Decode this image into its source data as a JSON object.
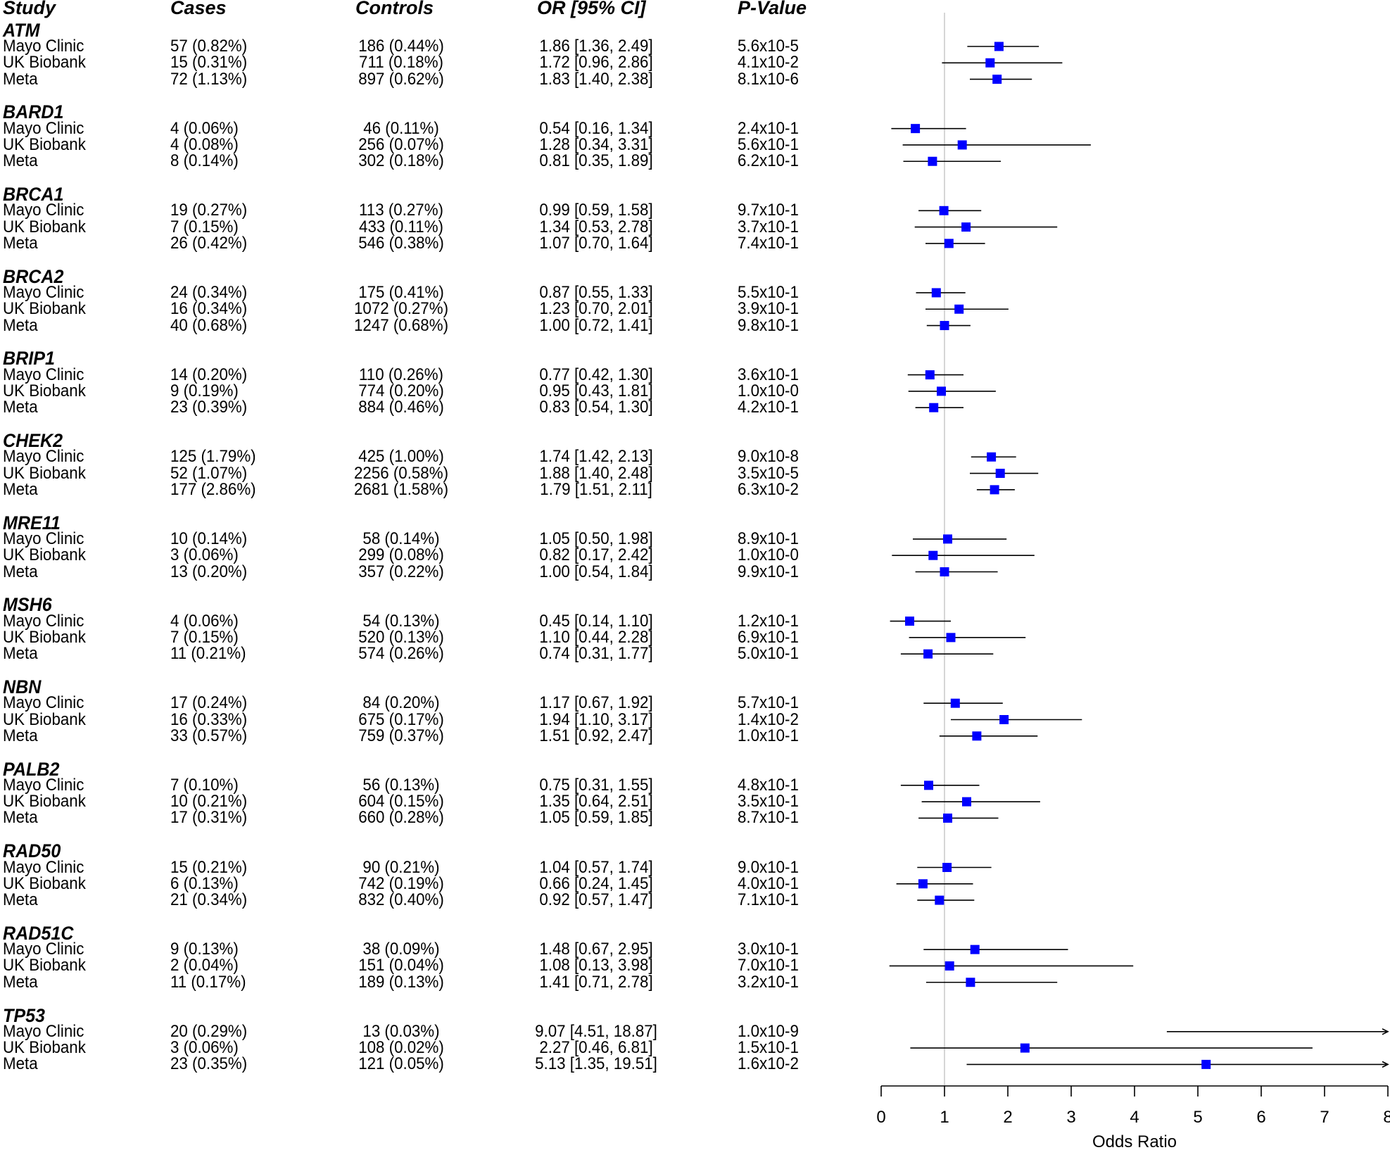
{
  "chart_data": {
    "type": "forest",
    "xlabel": "Odds Ratio",
    "xlim": [
      0,
      8
    ],
    "xticks": [
      0,
      1,
      2,
      3,
      4,
      5,
      6,
      7,
      8
    ],
    "reference_line": 1,
    "marker_color": "#0000ff",
    "columns": [
      "Study",
      "Cases",
      "Controls",
      "OR [95% CI]",
      "P-Value"
    ],
    "groups": [
      {
        "gene": "ATM",
        "rows": [
          {
            "study": "Mayo Clinic",
            "cases": "57 (0.82%)",
            "controls": "186 (0.44%)",
            "or_text": "1.86 [1.36, 2.49]",
            "p": "5.6x10-5",
            "or": 1.86,
            "lo": 1.36,
            "hi": 2.49
          },
          {
            "study": "UK Biobank",
            "cases": "15 (0.31%)",
            "controls": "711 (0.18%)",
            "or_text": "1.72 [0.96, 2.86]",
            "p": "4.1x10-2",
            "or": 1.72,
            "lo": 0.96,
            "hi": 2.86
          },
          {
            "study": "Meta",
            "cases": "72 (1.13%)",
            "controls": "897 (0.62%)",
            "or_text": "1.83 [1.40, 2.38]",
            "p": "8.1x10-6",
            "or": 1.83,
            "lo": 1.4,
            "hi": 2.38
          }
        ]
      },
      {
        "gene": "BARD1",
        "rows": [
          {
            "study": "Mayo Clinic",
            "cases": "4 (0.06%)",
            "controls": "46 (0.11%)",
            "or_text": "0.54 [0.16, 1.34]",
            "p": "2.4x10-1",
            "or": 0.54,
            "lo": 0.16,
            "hi": 1.34
          },
          {
            "study": "UK Biobank",
            "cases": "4 (0.08%)",
            "controls": "256 (0.07%)",
            "or_text": "1.28 [0.34, 3.31]",
            "p": "5.6x10-1",
            "or": 1.28,
            "lo": 0.34,
            "hi": 3.31
          },
          {
            "study": "Meta",
            "cases": "8 (0.14%)",
            "controls": "302 (0.18%)",
            "or_text": "0.81 [0.35, 1.89]",
            "p": "6.2x10-1",
            "or": 0.81,
            "lo": 0.35,
            "hi": 1.89
          }
        ]
      },
      {
        "gene": "BRCA1",
        "rows": [
          {
            "study": "Mayo Clinic",
            "cases": "19 (0.27%)",
            "controls": "113 (0.27%)",
            "or_text": "0.99 [0.59, 1.58]",
            "p": "9.7x10-1",
            "or": 0.99,
            "lo": 0.59,
            "hi": 1.58
          },
          {
            "study": "UK Biobank",
            "cases": "7 (0.15%)",
            "controls": "433 (0.11%)",
            "or_text": "1.34 [0.53, 2.78]",
            "p": "3.7x10-1",
            "or": 1.34,
            "lo": 0.53,
            "hi": 2.78
          },
          {
            "study": "Meta",
            "cases": "26 (0.42%)",
            "controls": "546 (0.38%)",
            "or_text": "1.07 [0.70, 1.64]",
            "p": "7.4x10-1",
            "or": 1.07,
            "lo": 0.7,
            "hi": 1.64
          }
        ]
      },
      {
        "gene": "BRCA2",
        "rows": [
          {
            "study": "Mayo Clinic",
            "cases": "24 (0.34%)",
            "controls": "175 (0.41%)",
            "or_text": "0.87 [0.55, 1.33]",
            "p": "5.5x10-1",
            "or": 0.87,
            "lo": 0.55,
            "hi": 1.33
          },
          {
            "study": "UK Biobank",
            "cases": "16 (0.34%)",
            "controls": "1072 (0.27%)",
            "or_text": "1.23 [0.70, 2.01]",
            "p": "3.9x10-1",
            "or": 1.23,
            "lo": 0.7,
            "hi": 2.01
          },
          {
            "study": "Meta",
            "cases": "40 (0.68%)",
            "controls": "1247 (0.68%)",
            "or_text": "1.00 [0.72, 1.41]",
            "p": "9.8x10-1",
            "or": 1.0,
            "lo": 0.72,
            "hi": 1.41
          }
        ]
      },
      {
        "gene": "BRIP1",
        "rows": [
          {
            "study": "Mayo Clinic",
            "cases": "14 (0.20%)",
            "controls": "110 (0.26%)",
            "or_text": "0.77 [0.42, 1.30]",
            "p": "3.6x10-1",
            "or": 0.77,
            "lo": 0.42,
            "hi": 1.3
          },
          {
            "study": "UK Biobank",
            "cases": "9 (0.19%)",
            "controls": "774 (0.20%)",
            "or_text": "0.95 [0.43, 1.81]",
            "p": "1.0x10-0",
            "or": 0.95,
            "lo": 0.43,
            "hi": 1.81
          },
          {
            "study": "Meta",
            "cases": "23 (0.39%)",
            "controls": "884 (0.46%)",
            "or_text": "0.83 [0.54, 1.30]",
            "p": "4.2x10-1",
            "or": 0.83,
            "lo": 0.54,
            "hi": 1.3
          }
        ]
      },
      {
        "gene": "CHEK2",
        "rows": [
          {
            "study": "Mayo Clinic",
            "cases": "125 (1.79%)",
            "controls": "425 (1.00%)",
            "or_text": "1.74 [1.42, 2.13]",
            "p": "9.0x10-8",
            "or": 1.74,
            "lo": 1.42,
            "hi": 2.13
          },
          {
            "study": "UK Biobank",
            "cases": "52 (1.07%)",
            "controls": "2256 (0.58%)",
            "or_text": "1.88 [1.40, 2.48]",
            "p": "3.5x10-5",
            "or": 1.88,
            "lo": 1.4,
            "hi": 2.48
          },
          {
            "study": "Meta",
            "cases": "177 (2.86%)",
            "controls": "2681 (1.58%)",
            "or_text": "1.79 [1.51, 2.11]",
            "p": "6.3x10-2",
            "or": 1.79,
            "lo": 1.51,
            "hi": 2.11
          }
        ]
      },
      {
        "gene": "MRE11",
        "rows": [
          {
            "study": "Mayo Clinic",
            "cases": "10 (0.14%)",
            "controls": "58 (0.14%)",
            "or_text": "1.05 [0.50, 1.98]",
            "p": "8.9x10-1",
            "or": 1.05,
            "lo": 0.5,
            "hi": 1.98
          },
          {
            "study": "UK Biobank",
            "cases": "3 (0.06%)",
            "controls": "299 (0.08%)",
            "or_text": "0.82 [0.17, 2.42]",
            "p": "1.0x10-0",
            "or": 0.82,
            "lo": 0.17,
            "hi": 2.42
          },
          {
            "study": "Meta",
            "cases": "13 (0.20%)",
            "controls": "357 (0.22%)",
            "or_text": "1.00 [0.54, 1.84]",
            "p": "9.9x10-1",
            "or": 1.0,
            "lo": 0.54,
            "hi": 1.84
          }
        ]
      },
      {
        "gene": "MSH6",
        "rows": [
          {
            "study": "Mayo Clinic",
            "cases": "4 (0.06%)",
            "controls": "54 (0.13%)",
            "or_text": "0.45 [0.14, 1.10]",
            "p": "1.2x10-1",
            "or": 0.45,
            "lo": 0.14,
            "hi": 1.1
          },
          {
            "study": "UK Biobank",
            "cases": "7 (0.15%)",
            "controls": "520 (0.13%)",
            "or_text": "1.10 [0.44, 2.28]",
            "p": "6.9x10-1",
            "or": 1.1,
            "lo": 0.44,
            "hi": 2.28
          },
          {
            "study": "Meta",
            "cases": "11 (0.21%)",
            "controls": "574 (0.26%)",
            "or_text": "0.74 [0.31, 1.77]",
            "p": "5.0x10-1",
            "or": 0.74,
            "lo": 0.31,
            "hi": 1.77
          }
        ]
      },
      {
        "gene": "NBN",
        "rows": [
          {
            "study": "Mayo Clinic",
            "cases": "17 (0.24%)",
            "controls": "84 (0.20%)",
            "or_text": "1.17 [0.67, 1.92]",
            "p": "5.7x10-1",
            "or": 1.17,
            "lo": 0.67,
            "hi": 1.92
          },
          {
            "study": "UK Biobank",
            "cases": "16 (0.33%)",
            "controls": "675 (0.17%)",
            "or_text": "1.94 [1.10, 3.17]",
            "p": "1.4x10-2",
            "or": 1.94,
            "lo": 1.1,
            "hi": 3.17
          },
          {
            "study": "Meta",
            "cases": "33 (0.57%)",
            "controls": "759 (0.37%)",
            "or_text": "1.51 [0.92, 2.47]",
            "p": "1.0x10-1",
            "or": 1.51,
            "lo": 0.92,
            "hi": 2.47
          }
        ]
      },
      {
        "gene": "PALB2",
        "rows": [
          {
            "study": "Mayo Clinic",
            "cases": "7 (0.10%)",
            "controls": "56 (0.13%)",
            "or_text": "0.75 [0.31, 1.55]",
            "p": "4.8x10-1",
            "or": 0.75,
            "lo": 0.31,
            "hi": 1.55
          },
          {
            "study": "UK Biobank",
            "cases": "10 (0.21%)",
            "controls": "604 (0.15%)",
            "or_text": "1.35 [0.64, 2.51]",
            "p": "3.5x10-1",
            "or": 1.35,
            "lo": 0.64,
            "hi": 2.51
          },
          {
            "study": "Meta",
            "cases": "17 (0.31%)",
            "controls": "660 (0.28%)",
            "or_text": "1.05 [0.59, 1.85]",
            "p": "8.7x10-1",
            "or": 1.05,
            "lo": 0.59,
            "hi": 1.85
          }
        ]
      },
      {
        "gene": "RAD50",
        "rows": [
          {
            "study": "Mayo Clinic",
            "cases": "15 (0.21%)",
            "controls": "90 (0.21%)",
            "or_text": "1.04 [0.57, 1.74]",
            "p": "9.0x10-1",
            "or": 1.04,
            "lo": 0.57,
            "hi": 1.74
          },
          {
            "study": "UK Biobank",
            "cases": "6 (0.13%)",
            "controls": "742 (0.19%)",
            "or_text": "0.66 [0.24, 1.45]",
            "p": "4.0x10-1",
            "or": 0.66,
            "lo": 0.24,
            "hi": 1.45
          },
          {
            "study": "Meta",
            "cases": "21 (0.34%)",
            "controls": "832 (0.40%)",
            "or_text": "0.92 [0.57, 1.47]",
            "p": "7.1x10-1",
            "or": 0.92,
            "lo": 0.57,
            "hi": 1.47
          }
        ]
      },
      {
        "gene": "RAD51C",
        "rows": [
          {
            "study": "Mayo Clinic",
            "cases": "9 (0.13%)",
            "controls": "38 (0.09%)",
            "or_text": "1.48 [0.67, 2.95]",
            "p": "3.0x10-1",
            "or": 1.48,
            "lo": 0.67,
            "hi": 2.95
          },
          {
            "study": "UK Biobank",
            "cases": "2 (0.04%)",
            "controls": "151 (0.04%)",
            "or_text": "1.08 [0.13, 3.98]",
            "p": "7.0x10-1",
            "or": 1.08,
            "lo": 0.13,
            "hi": 3.98
          },
          {
            "study": "Meta",
            "cases": "11 (0.17%)",
            "controls": "189 (0.13%)",
            "or_text": "1.41 [0.71, 2.78]",
            "p": "3.2x10-1",
            "or": 1.41,
            "lo": 0.71,
            "hi": 2.78
          }
        ]
      },
      {
        "gene": "TP53",
        "rows": [
          {
            "study": "Mayo Clinic",
            "cases": "20 (0.29%)",
            "controls": "13 (0.03%)",
            "or_text": "9.07 [4.51, 18.87]",
            "p": "1.0x10-9",
            "or": 9.07,
            "lo": 4.51,
            "hi": 18.87
          },
          {
            "study": "UK Biobank",
            "cases": "3 (0.06%)",
            "controls": "108 (0.02%)",
            "or_text": "2.27 [0.46, 6.81]",
            "p": "1.5x10-1",
            "or": 2.27,
            "lo": 0.46,
            "hi": 6.81
          },
          {
            "study": "Meta",
            "cases": "23 (0.35%)",
            "controls": "121 (0.05%)",
            "or_text": "5.13 [1.35, 19.51]",
            "p": "1.6x10-2",
            "or": 5.13,
            "lo": 1.35,
            "hi": 19.51
          }
        ]
      }
    ]
  }
}
